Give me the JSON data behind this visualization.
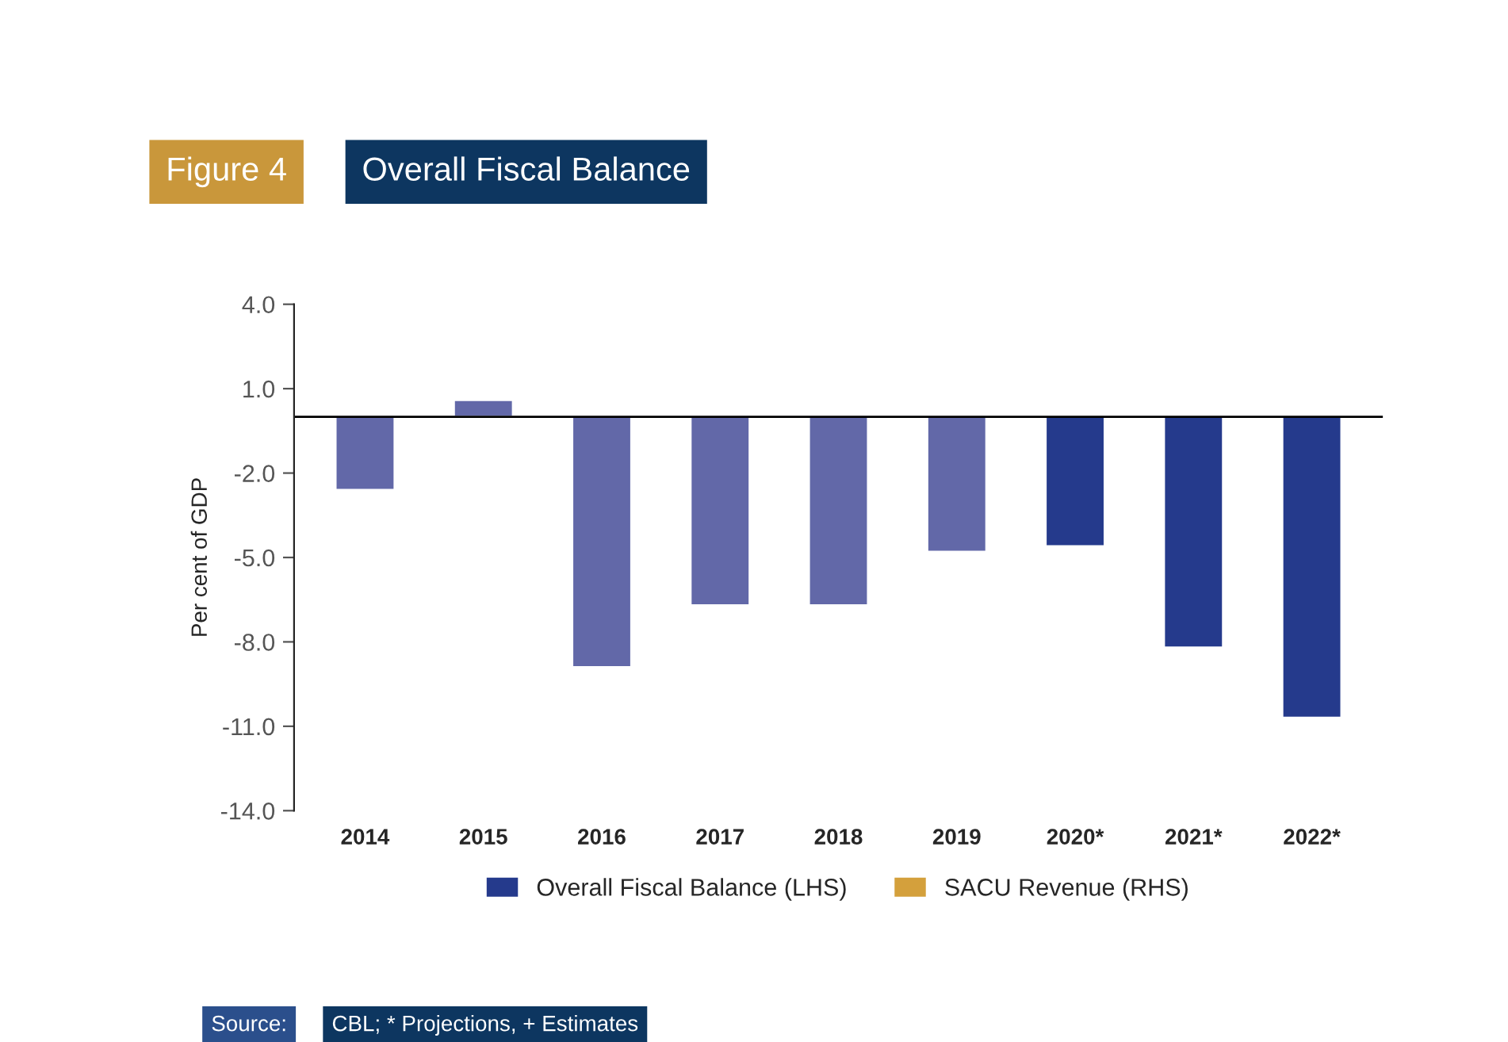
{
  "chart_data": {
    "type": "bar",
    "title": "Overall Fiscal Balance",
    "ylabel": "Per cent of GDP",
    "categories": [
      "2014",
      "2015",
      "2016",
      "2017",
      "2018",
      "2019",
      "2020*",
      "2021*",
      "2022*"
    ],
    "series": [
      {
        "name": "Overall Fiscal Balance (LHS)",
        "color": "#253a8c",
        "colors": [
          "#6268a8",
          "#6268a8",
          "#6268a8",
          "#6268a8",
          "#6268a8",
          "#6268a8",
          "#253a8c",
          "#253a8c",
          "#253a8c"
        ],
        "values": [
          -2.6,
          0.6,
          -8.9,
          -6.7,
          -6.7,
          -4.8,
          -4.6,
          -8.2,
          -10.7
        ]
      },
      {
        "name": "SACU Revenue (RHS)",
        "color": "#d4a03c",
        "values": [
          null,
          null,
          null,
          null,
          null,
          null,
          null,
          null,
          null
        ]
      }
    ],
    "ylim": [
      -14.0,
      4.0
    ],
    "yticks": [
      {
        "value": -14,
        "label": "-14.0"
      },
      {
        "value": -11,
        "label": "-11.0"
      },
      {
        "value": -8,
        "label": "-8.0"
      },
      {
        "value": -5,
        "label": "-5.0"
      },
      {
        "value": -2,
        "label": "-2.0"
      },
      {
        "value": 1,
        "label": "1.0"
      },
      {
        "value": 4,
        "label": "4.0"
      }
    ],
    "grid": false,
    "legend": "bottom",
    "annotations": [
      "Figure 4",
      "Source:",
      "CBL; * Projections, + Estimates"
    ]
  }
}
